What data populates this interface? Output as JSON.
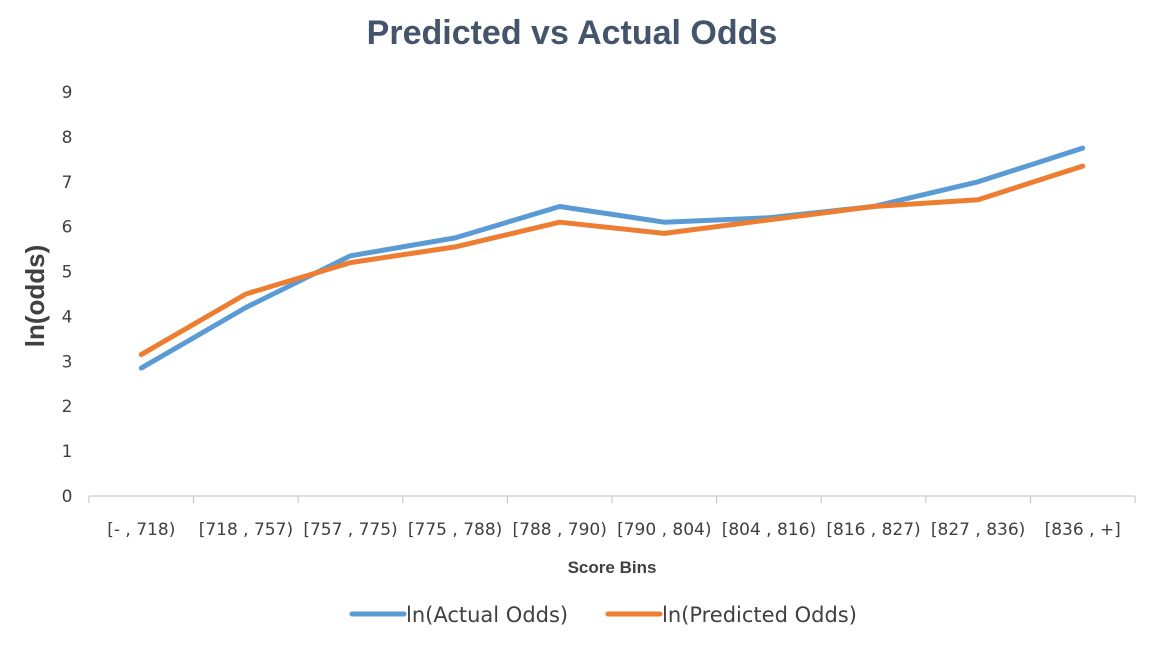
{
  "chart_data": {
    "type": "line",
    "title": "Predicted vs Actual Odds",
    "xlabel": "Score Bins",
    "ylabel": "ln(odds)",
    "categories": [
      "[- , 718)",
      "[718 , 757)",
      "[757 , 775)",
      "[775 , 788)",
      "[788 , 790)",
      "[790 , 804)",
      "[804 , 816)",
      "[816 , 827)",
      "[827 , 836)",
      "[836 , +]"
    ],
    "ylim": [
      0,
      9
    ],
    "yticks": [
      "0",
      "1",
      "2",
      "3",
      "4",
      "5",
      "6",
      "7",
      "8",
      "9"
    ],
    "grid": false,
    "legend_position": "bottom",
    "series": [
      {
        "name": "ln(Actual Odds)",
        "color": "#5b9bd5",
        "values": [
          2.85,
          4.2,
          5.35,
          5.75,
          6.45,
          6.1,
          6.2,
          6.45,
          7.0,
          7.75
        ]
      },
      {
        "name": "ln(Predicted Odds)",
        "color": "#ed7d31",
        "values": [
          3.15,
          4.5,
          5.2,
          5.55,
          6.1,
          5.85,
          6.15,
          6.45,
          6.6,
          7.35
        ]
      }
    ]
  }
}
